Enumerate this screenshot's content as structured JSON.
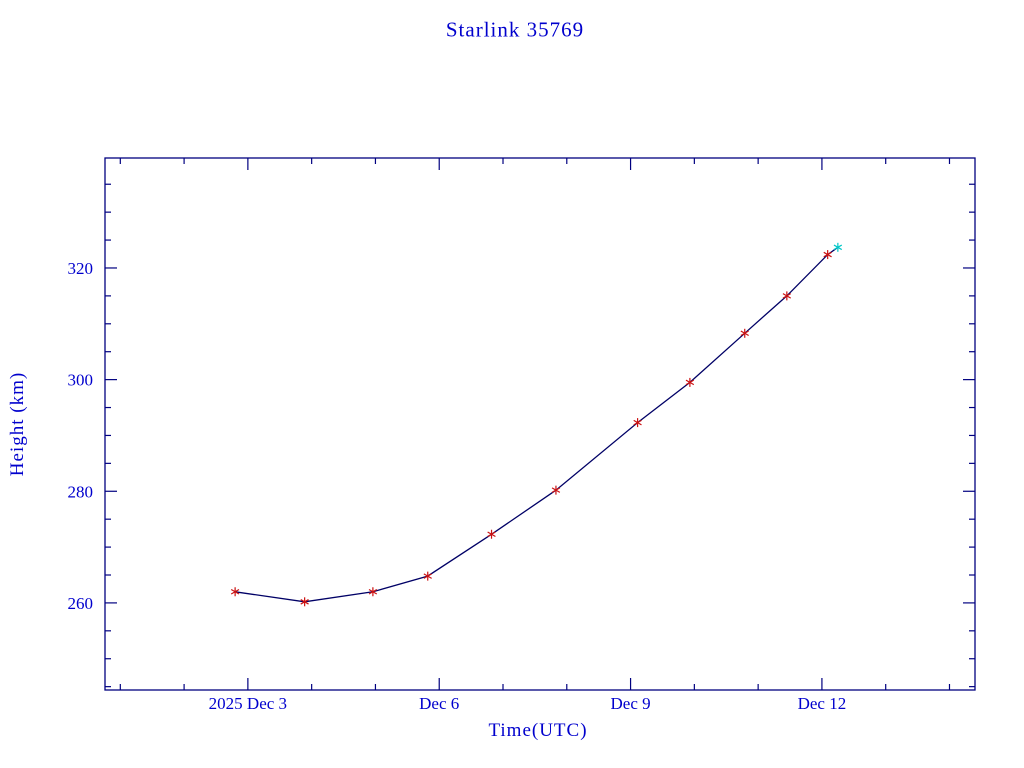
{
  "colors": {
    "text": "#0000cd",
    "axis": "#000080",
    "line": "#000066",
    "marker": "#cc1111",
    "highlight": "#00c8c8",
    "background": "#ffffff"
  },
  "chart_data": {
    "type": "line",
    "title": "Starlink 35769",
    "xlabel": "Time(UTC)",
    "ylabel": "Height (km)",
    "x_unit": "day of December 2025 (UTC)",
    "xlim": [
      0.76,
      14.4
    ],
    "ylim": [
      244.4,
      339.7
    ],
    "grid": false,
    "legend": "none",
    "x_major_ticks": [
      {
        "value": 3,
        "label": "2025 Dec  3"
      },
      {
        "value": 6,
        "label": "Dec  6"
      },
      {
        "value": 9,
        "label": "Dec  9"
      },
      {
        "value": 12,
        "label": "Dec 12"
      }
    ],
    "x_minor_step": 1,
    "y_major_ticks": [
      {
        "value": 260,
        "label": "260"
      },
      {
        "value": 280,
        "label": "280"
      },
      {
        "value": 300,
        "label": "300"
      },
      {
        "value": 320,
        "label": "320"
      }
    ],
    "y_minor_step": 5,
    "series": [
      {
        "name": "observed-heights",
        "marker": "asterisk",
        "marker_color": "#cc1111",
        "line_color": "#000066",
        "points": [
          {
            "x": 2.8,
            "y": 262.0
          },
          {
            "x": 3.89,
            "y": 260.2
          },
          {
            "x": 4.96,
            "y": 262.0
          },
          {
            "x": 5.82,
            "y": 264.8
          },
          {
            "x": 6.82,
            "y": 272.3
          },
          {
            "x": 7.83,
            "y": 280.2
          },
          {
            "x": 9.11,
            "y": 292.3
          },
          {
            "x": 9.93,
            "y": 299.5
          },
          {
            "x": 10.79,
            "y": 308.3
          },
          {
            "x": 11.45,
            "y": 315.0
          },
          {
            "x": 12.09,
            "y": 322.4
          }
        ]
      },
      {
        "name": "latest-point",
        "marker": "asterisk",
        "marker_color": "#00c8c8",
        "line_color": "#000066",
        "points": [
          {
            "x": 12.25,
            "y": 323.7
          }
        ]
      }
    ]
  }
}
